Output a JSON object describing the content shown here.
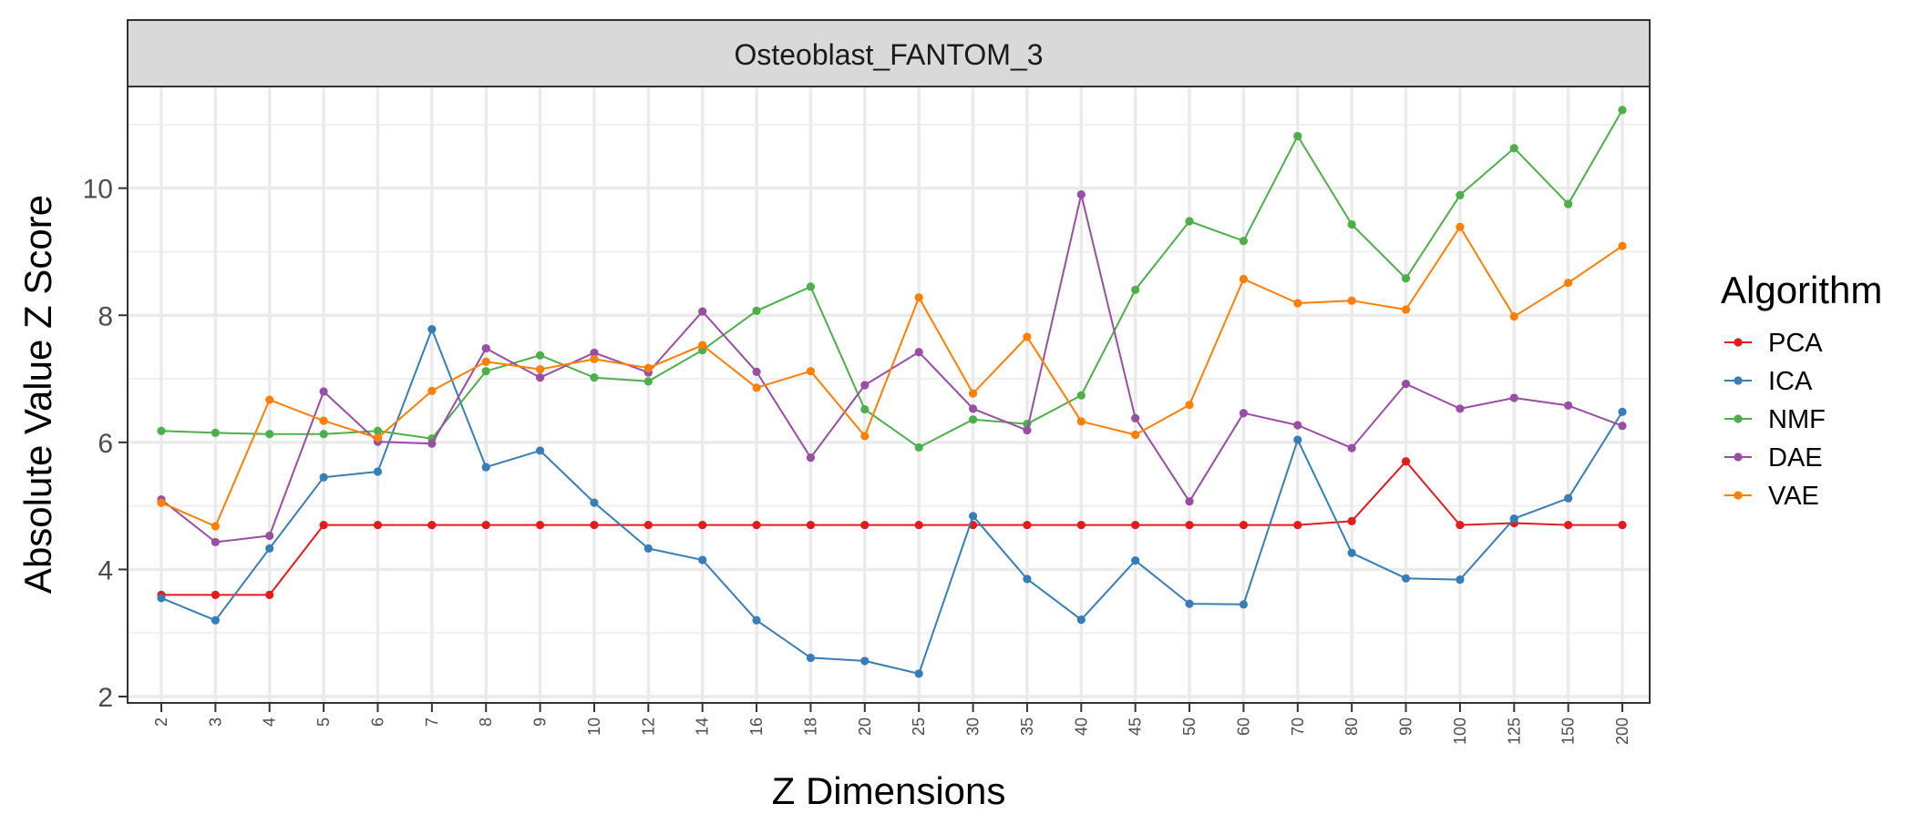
{
  "chart_data": {
    "type": "line",
    "facet_title": "Osteoblast_FANTOM_3",
    "xlabel": "Z Dimensions",
    "ylabel": "Absolute Value Z Score",
    "categories": [
      "2",
      "3",
      "4",
      "5",
      "6",
      "7",
      "8",
      "9",
      "10",
      "12",
      "14",
      "16",
      "18",
      "20",
      "25",
      "30",
      "35",
      "40",
      "45",
      "50",
      "60",
      "70",
      "80",
      "90",
      "100",
      "125",
      "150",
      "200"
    ],
    "y_ticks": [
      2,
      4,
      6,
      8,
      10
    ],
    "ylim": [
      1.9,
      11.6
    ],
    "grid": true,
    "legend": {
      "title": "Algorithm",
      "position": "right"
    },
    "series": [
      {
        "name": "PCA",
        "color": "#E41A1C",
        "values": [
          3.6,
          3.6,
          3.6,
          4.7,
          4.7,
          4.7,
          4.7,
          4.7,
          4.7,
          4.7,
          4.7,
          4.7,
          4.7,
          4.7,
          4.7,
          4.7,
          4.7,
          4.7,
          4.7,
          4.7,
          4.7,
          4.7,
          4.76,
          5.7,
          4.7,
          4.73,
          4.7,
          4.7
        ]
      },
      {
        "name": "ICA",
        "color": "#377EB8",
        "values": [
          3.55,
          3.2,
          4.33,
          5.45,
          5.54,
          7.78,
          5.61,
          5.87,
          5.05,
          4.33,
          4.15,
          3.2,
          2.61,
          2.56,
          2.36,
          4.84,
          3.85,
          3.21,
          4.14,
          3.46,
          3.45,
          6.04,
          4.26,
          3.86,
          3.84,
          4.8,
          5.12,
          6.48
        ]
      },
      {
        "name": "NMF",
        "color": "#4DAF4A",
        "values": [
          6.18,
          6.15,
          6.13,
          6.13,
          6.18,
          6.06,
          7.12,
          7.37,
          7.02,
          6.96,
          7.45,
          8.07,
          8.45,
          6.52,
          5.92,
          6.36,
          6.29,
          6.74,
          8.4,
          9.48,
          9.17,
          10.82,
          9.43,
          8.58,
          9.89,
          10.63,
          9.75,
          11.23
        ]
      },
      {
        "name": "DAE",
        "color": "#984EA3",
        "values": [
          5.1,
          4.43,
          4.53,
          6.8,
          6.01,
          5.98,
          7.48,
          7.02,
          7.41,
          7.1,
          8.06,
          7.11,
          5.76,
          6.9,
          7.42,
          6.53,
          6.19,
          9.9,
          6.38,
          5.07,
          6.46,
          6.27,
          5.91,
          6.92,
          6.53,
          6.7,
          6.58,
          6.26
        ]
      },
      {
        "name": "VAE",
        "color": "#FF7F00",
        "values": [
          5.05,
          4.68,
          6.67,
          6.34,
          6.07,
          6.81,
          7.27,
          7.15,
          7.31,
          7.17,
          7.53,
          6.86,
          7.12,
          6.1,
          8.28,
          6.77,
          7.66,
          6.33,
          6.12,
          6.59,
          8.57,
          8.19,
          8.23,
          8.09,
          9.39,
          7.98,
          8.51,
          9.09
        ]
      }
    ]
  }
}
